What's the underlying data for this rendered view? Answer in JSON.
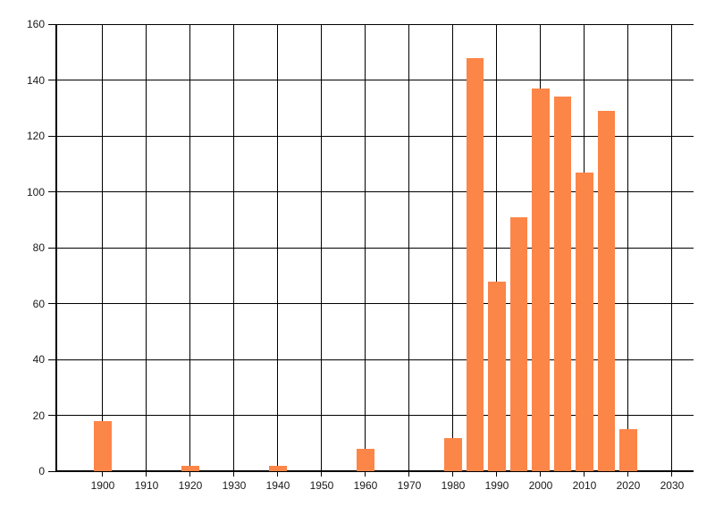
{
  "chart_data": {
    "type": "bar",
    "title": "",
    "xlabel": "",
    "ylabel": "",
    "x": [
      1900,
      1920,
      1940,
      1960,
      1980,
      1985,
      1990,
      1995,
      2000,
      2005,
      2010,
      2015,
      2020
    ],
    "values": [
      18,
      2,
      2,
      8,
      12,
      148,
      68,
      91,
      137,
      134,
      107,
      129,
      15
    ],
    "bar_color": "#FC8548",
    "bar_width_years": 4,
    "x_axis": {
      "min": 1889.6,
      "max": 2034.9,
      "tick_values": [
        1900,
        1910,
        1920,
        1930,
        1940,
        1950,
        1960,
        1970,
        1980,
        1990,
        2000,
        2010,
        2020,
        2030
      ],
      "tick_labels": [
        "1900",
        "1910",
        "1920",
        "1930",
        "1940",
        "1950",
        "1960",
        "1970",
        "1980",
        "1990",
        "2000",
        "2010",
        "2020",
        "2030"
      ]
    },
    "y_axis": {
      "min": 0,
      "max": 160,
      "tick_values": [
        0,
        20,
        40,
        60,
        80,
        100,
        120,
        140,
        160
      ],
      "tick_labels": [
        "0",
        "20",
        "40",
        "60",
        "80",
        "100",
        "120",
        "140",
        "160"
      ]
    },
    "grid": "both",
    "gridline_color": "#000000",
    "axis_color": "#000000",
    "tick_label_color": "#1a1a1a",
    "background_color": "#ffffff",
    "legend": "none"
  }
}
